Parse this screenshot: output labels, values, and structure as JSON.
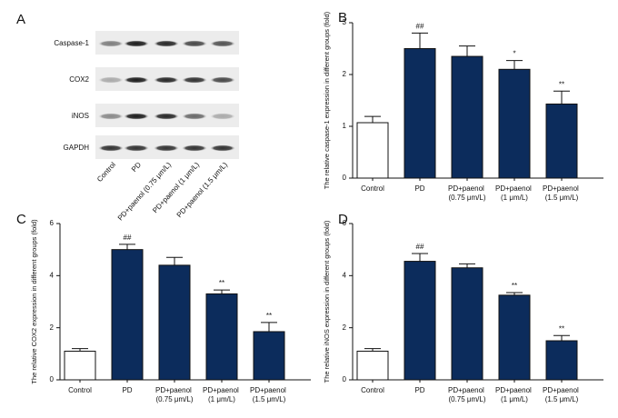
{
  "blot": {
    "panel_label": "A",
    "rows": [
      "Caspase-1",
      "COX2",
      "iNOS",
      "GAPDH"
    ],
    "lanes": [
      "Control",
      "PD",
      "PD+paenol (0.75 μm/L)",
      "PD+paenol (1 μm/L)",
      "PD+paenol (1.5 μm/L)"
    ]
  },
  "chart_data": [
    {
      "type": "bar",
      "panel_label": "B",
      "ylabel": "The relative caspase-1 expression in different groups (fold)",
      "categories": [
        "Control",
        "PD",
        "PD+paenol (0.75 μm/L)",
        "PD+paenol (1 μm/L)",
        "PD+paenol (1.5 μm/L)"
      ],
      "values": [
        1.07,
        2.5,
        2.35,
        2.1,
        1.43
      ],
      "errors": [
        0.12,
        0.3,
        0.2,
        0.17,
        0.25
      ],
      "annotations": [
        null,
        "##",
        null,
        "*",
        "**"
      ],
      "colors": [
        "#ffffff",
        "#0c2c5c",
        "#0c2c5c",
        "#0c2c5c",
        "#0c2c5c"
      ],
      "ylim": [
        0,
        3
      ],
      "yticks": [
        0,
        1,
        2,
        3
      ]
    },
    {
      "type": "bar",
      "panel_label": "C",
      "ylabel": "The relative COX2 expression in different groups (fold)",
      "categories": [
        "Control",
        "PD",
        "PD+paenol (0.75 μm/L)",
        "PD+paenol (1 μm/L)",
        "PD+paenol (1.5 μm/L)"
      ],
      "values": [
        1.1,
        5.0,
        4.4,
        3.3,
        1.85
      ],
      "errors": [
        0.1,
        0.2,
        0.3,
        0.15,
        0.35
      ],
      "annotations": [
        null,
        "##",
        null,
        "**",
        "**"
      ],
      "colors": [
        "#ffffff",
        "#0c2c5c",
        "#0c2c5c",
        "#0c2c5c",
        "#0c2c5c"
      ],
      "ylim": [
        0,
        6
      ],
      "yticks": [
        0,
        2,
        4,
        6
      ]
    },
    {
      "type": "bar",
      "panel_label": "D",
      "ylabel": "The relative iNOS expression in different groups (fold)",
      "categories": [
        "Control",
        "PD",
        "PD+paenol (0.75 μm/L)",
        "PD+paenol (1 μm/L)",
        "PD+paenol (1.5 μm/L)"
      ],
      "values": [
        1.1,
        4.55,
        4.3,
        3.25,
        1.5
      ],
      "errors": [
        0.1,
        0.3,
        0.15,
        0.1,
        0.2
      ],
      "annotations": [
        null,
        "##",
        null,
        "**",
        "**"
      ],
      "colors": [
        "#ffffff",
        "#0c2c5c",
        "#0c2c5c",
        "#0c2c5c",
        "#0c2c5c"
      ],
      "ylim": [
        0,
        6
      ],
      "yticks": [
        0,
        2,
        4,
        6
      ]
    }
  ]
}
